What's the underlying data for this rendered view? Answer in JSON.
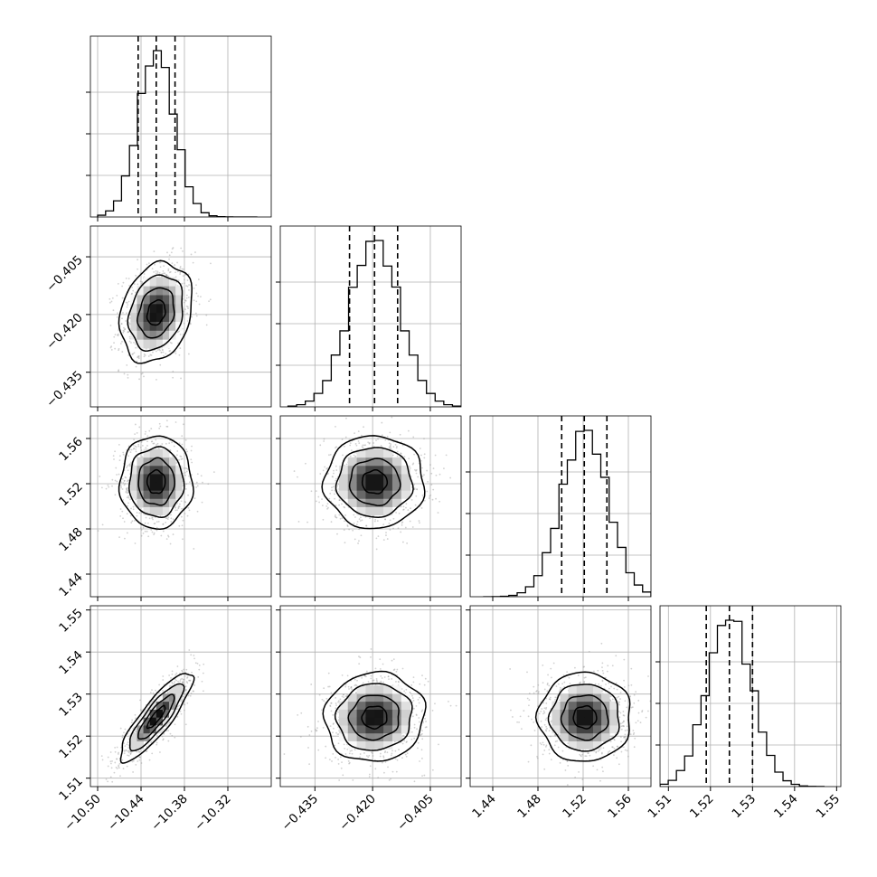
{
  "figure": {
    "title": "",
    "background": "#ffffff",
    "ink_color": "#000000",
    "grid_color": "#b0b0b0",
    "scatter_color": "#9a9a9a"
  },
  "parameters": [
    {
      "ticks": [
        -10.5,
        -10.44,
        -10.38,
        -10.32
      ],
      "tick_labels": [
        "−10.50",
        "−10.44",
        "−10.38",
        "−10.32"
      ],
      "lim": [
        -10.51,
        -10.26
      ]
    },
    {
      "ticks": [
        -0.435,
        -0.42,
        -0.405
      ],
      "tick_labels": [
        "−0.435",
        "−0.420",
        "−0.405"
      ],
      "lim": [
        -0.444,
        -0.397
      ]
    },
    {
      "ticks": [
        1.44,
        1.48,
        1.52,
        1.56
      ],
      "tick_labels": [
        "1.44",
        "1.48",
        "1.52",
        "1.56"
      ],
      "lim": [
        1.42,
        1.58
      ]
    },
    {
      "ticks": [
        1.51,
        1.52,
        1.53,
        1.54,
        1.55
      ],
      "tick_labels": [
        "1.51",
        "1.52",
        "1.53",
        "1.54",
        "1.55"
      ],
      "lim": [
        1.508,
        1.551
      ]
    }
  ],
  "chart_data": {
    "type": "corner",
    "title": "",
    "grid": true,
    "n_params": 4,
    "marginals": [
      {
        "param": 0,
        "mean": -10.419,
        "std": 0.025,
        "quantiles": [
          -10.444,
          -10.419,
          -10.393
        ],
        "x_range": [
          -10.5,
          -10.28
        ]
      },
      {
        "param": 1,
        "mean": -0.4195,
        "std": 0.0065,
        "quantiles": [
          -0.426,
          -0.4195,
          -0.4135
        ],
        "x_range": [
          -0.442,
          -0.397
        ]
      },
      {
        "param": 2,
        "mean": 1.5215,
        "std": 0.0205,
        "quantiles": [
          1.501,
          1.521,
          1.541
        ],
        "x_range": [
          1.432,
          1.58
        ]
      },
      {
        "param": 3,
        "mean": 1.5245,
        "std": 0.0053,
        "quantiles": [
          1.519,
          1.5245,
          1.53
        ],
        "x_range": [
          1.508,
          1.547
        ]
      }
    ],
    "correlations": [
      [
        1,
        0.22,
        0.0,
        0.86
      ],
      [
        0.22,
        1,
        0.0,
        0.05
      ],
      [
        0.0,
        0.0,
        1,
        0.0
      ],
      [
        0.86,
        0.05,
        0.0,
        1
      ]
    ],
    "contour_levels_sigma": [
      0.5,
      1.0,
      1.5,
      2.0
    ]
  }
}
